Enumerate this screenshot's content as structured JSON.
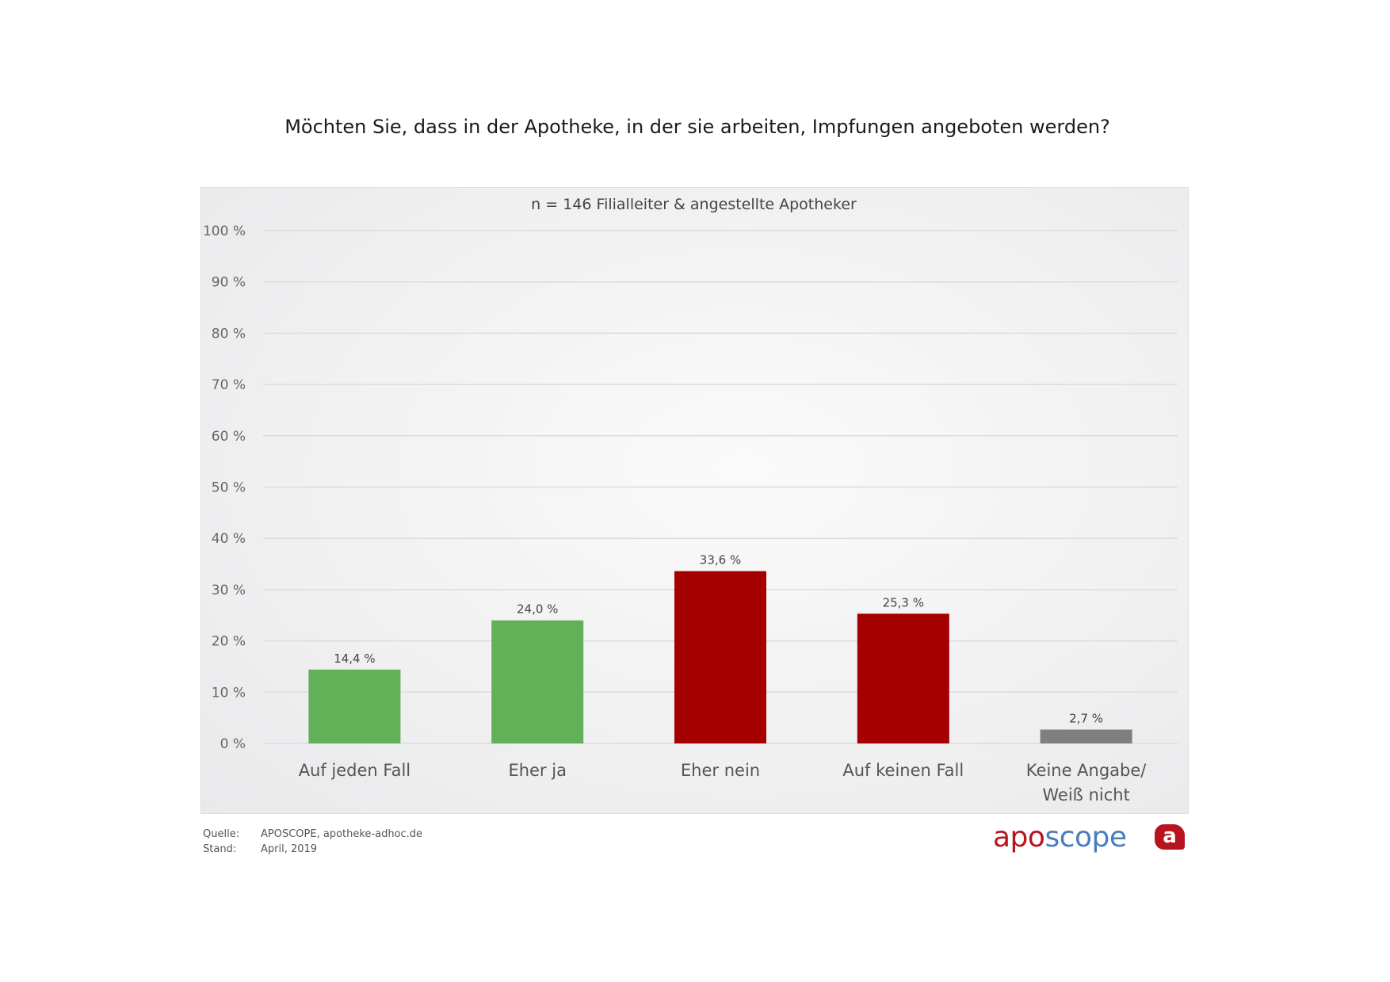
{
  "chart_data": {
    "type": "bar",
    "title": "Möchten Sie, dass in der Apotheke, in der sie arbeiten, Impfungen angeboten werden?",
    "subtitle": "n = 146 Filialleiter & angestellte Apotheker",
    "categories": [
      "Auf jeden Fall",
      "Eher ja",
      "Eher nein",
      "Auf keinen Fall",
      "Keine Angabe/\nWeiß nicht"
    ],
    "values": [
      14.4,
      24.0,
      33.6,
      25.3,
      2.7
    ],
    "data_labels": [
      "14,4 %",
      "24,0 %",
      "33,6 %",
      "25,3 %",
      "2,7 %"
    ],
    "colors": [
      "#62b058",
      "#62b058",
      "#a50000",
      "#a50000",
      "#7f7f7f"
    ],
    "ylim": [
      0,
      100
    ],
    "yticks": [
      0,
      10,
      20,
      30,
      40,
      50,
      60,
      70,
      80,
      90,
      100
    ],
    "ytick_labels": [
      "0 %",
      "10 %",
      "20 %",
      "30 %",
      "40 %",
      "50 %",
      "60 %",
      "70 %",
      "80 %",
      "90 %",
      "100 %"
    ],
    "grid": true,
    "xlabel": "",
    "ylabel": ""
  },
  "footer": {
    "source_label": "Quelle:",
    "source_value": "APOSCOPE, apotheke-adhoc.de",
    "date_label": "Stand:",
    "date_value": "April, 2019"
  },
  "logo": {
    "part1": "apo",
    "part2": "scope",
    "icon_letter": "a"
  }
}
